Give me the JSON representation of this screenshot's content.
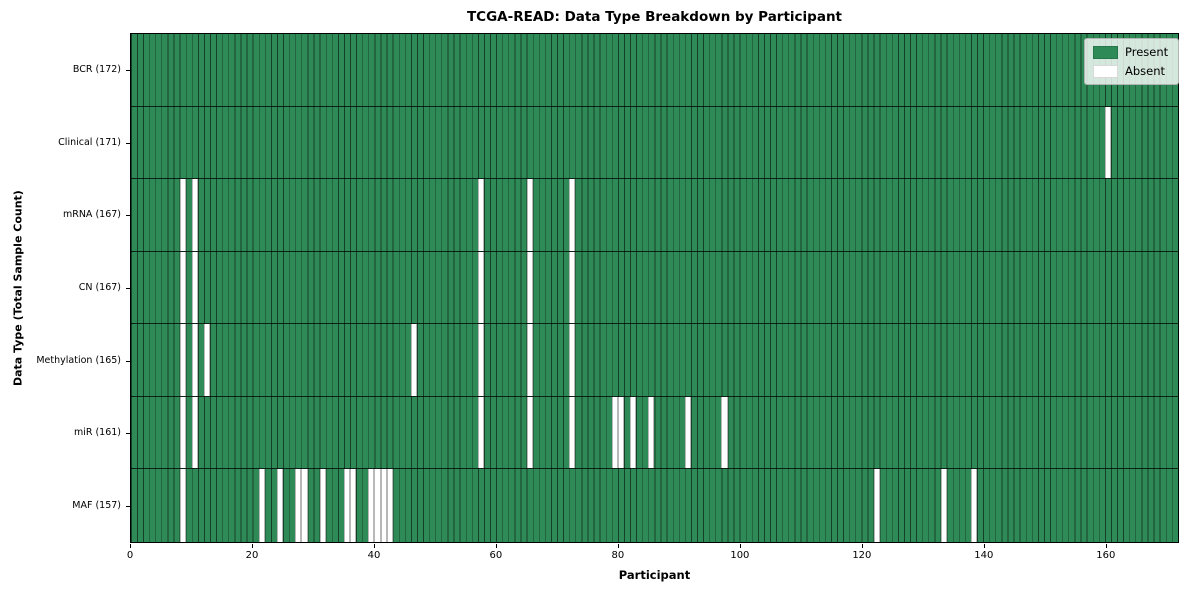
{
  "chart_data": {
    "type": "heatmap",
    "title": "TCGA-READ: Data Type Breakdown by Participant",
    "xlabel": "Participant",
    "ylabel": "Data Type (Total Sample Count)",
    "legend": [
      "Present",
      "Absent"
    ],
    "legend_position": "upper right",
    "grid": true,
    "colors": {
      "present": "#2e8b57",
      "absent": "#ffffff",
      "cell_edge": "rgba(0,0,0,0.55)",
      "row_divider": "rgba(0,0,0,0.75)"
    },
    "n_participants": 172,
    "x_axis": {
      "range": [
        0,
        172
      ],
      "ticks": [
        0,
        20,
        40,
        60,
        80,
        100,
        120,
        140,
        160
      ]
    },
    "rows": [
      {
        "name": "BCR",
        "label": "BCR (172)",
        "total": 172,
        "absent": []
      },
      {
        "name": "Clinical",
        "label": "Clinical (171)",
        "total": 171,
        "absent": [
          160
        ]
      },
      {
        "name": "mRNA",
        "label": "mRNA (167)",
        "total": 167,
        "absent": [
          8,
          10,
          57,
          65,
          72
        ]
      },
      {
        "name": "CN",
        "label": "CN (167)",
        "total": 167,
        "absent": [
          8,
          10,
          57,
          65,
          72
        ]
      },
      {
        "name": "Methylation",
        "label": "Methylation (165)",
        "total": 165,
        "absent": [
          8,
          10,
          12,
          46,
          57,
          65,
          72
        ]
      },
      {
        "name": "miR",
        "label": "miR (161)",
        "total": 161,
        "absent": [
          8,
          10,
          57,
          65,
          72,
          79,
          80,
          82,
          85,
          91,
          97
        ]
      },
      {
        "name": "MAF",
        "label": "MAF (157)",
        "total": 157,
        "absent": [
          8,
          21,
          24,
          27,
          28,
          31,
          35,
          36,
          39,
          40,
          41,
          42,
          122,
          133,
          138
        ]
      }
    ]
  }
}
